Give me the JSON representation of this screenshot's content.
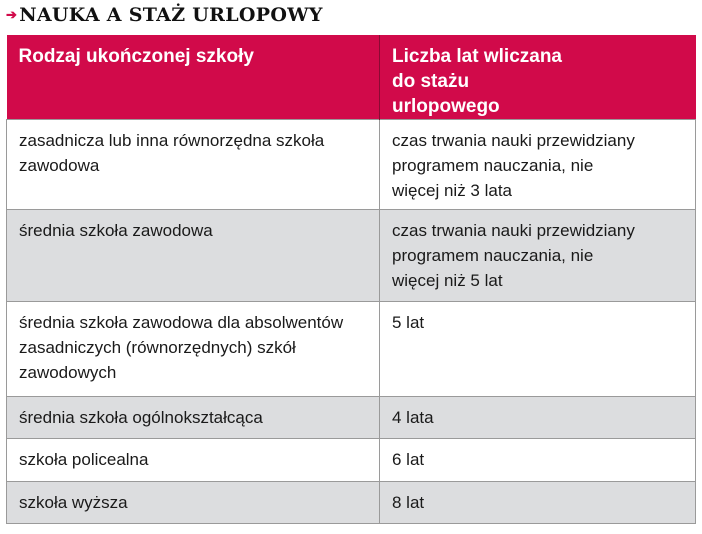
{
  "title": "NAUKA A STAŻ URLOPOWY",
  "title_icon": "arrow-right-icon",
  "colors": {
    "header": "#d10a4a",
    "stripe": "#dcdddf"
  },
  "table": {
    "headers": [
      "Rodzaj ukończonej szkoły",
      "Liczba lat wliczana do stażu urlopowego"
    ],
    "rows": [
      [
        "zasadnicza lub inna równorzędna szkoła zawodowa",
        "czas trwania nauki przewidziany programem nauczania, nie więcej niż 3 lata"
      ],
      [
        "średnia szkoła zawodowa",
        "czas trwania nauki przewidziany programem nauczania, nie więcej niż 5 lat"
      ],
      [
        "średnia szkoła zawodowa dla absolwentów zasadniczych (równorzędnych) szkół zawodowych",
        "5 lat"
      ],
      [
        "średnia szkoła ogólnokształcąca",
        "4 lata"
      ],
      [
        "szkoła policealna",
        "6 lat"
      ],
      [
        "szkoła wyższa",
        "8 lat"
      ]
    ]
  }
}
